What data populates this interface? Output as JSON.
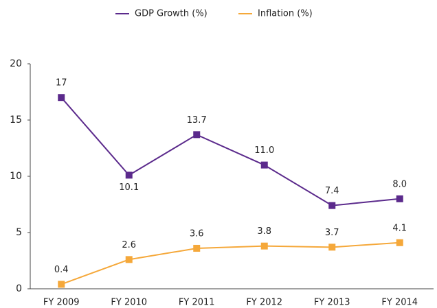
{
  "chart_data": {
    "type": "line",
    "categories": [
      "FY 2009",
      "FY 2010",
      "FY 2011",
      "FY 2012",
      "FY 2013",
      "FY 2014"
    ],
    "series": [
      {
        "name": "GDP Growth (%)",
        "color": "#5b2a8c",
        "values": [
          17,
          10.1,
          13.7,
          11.0,
          7.4,
          8.0
        ],
        "value_labels": [
          "17",
          "10.1",
          "13.7",
          "11.0",
          "7.4",
          "8.0"
        ]
      },
      {
        "name": "Inflation (%)",
        "color": "#f5a83a",
        "values": [
          0.4,
          2.6,
          3.6,
          3.8,
          3.7,
          4.1
        ]
      }
    ],
    "ylim": [
      0,
      20
    ],
    "yticks": [
      0,
      5,
      10,
      15,
      20
    ],
    "grid": false,
    "legend": "top"
  }
}
